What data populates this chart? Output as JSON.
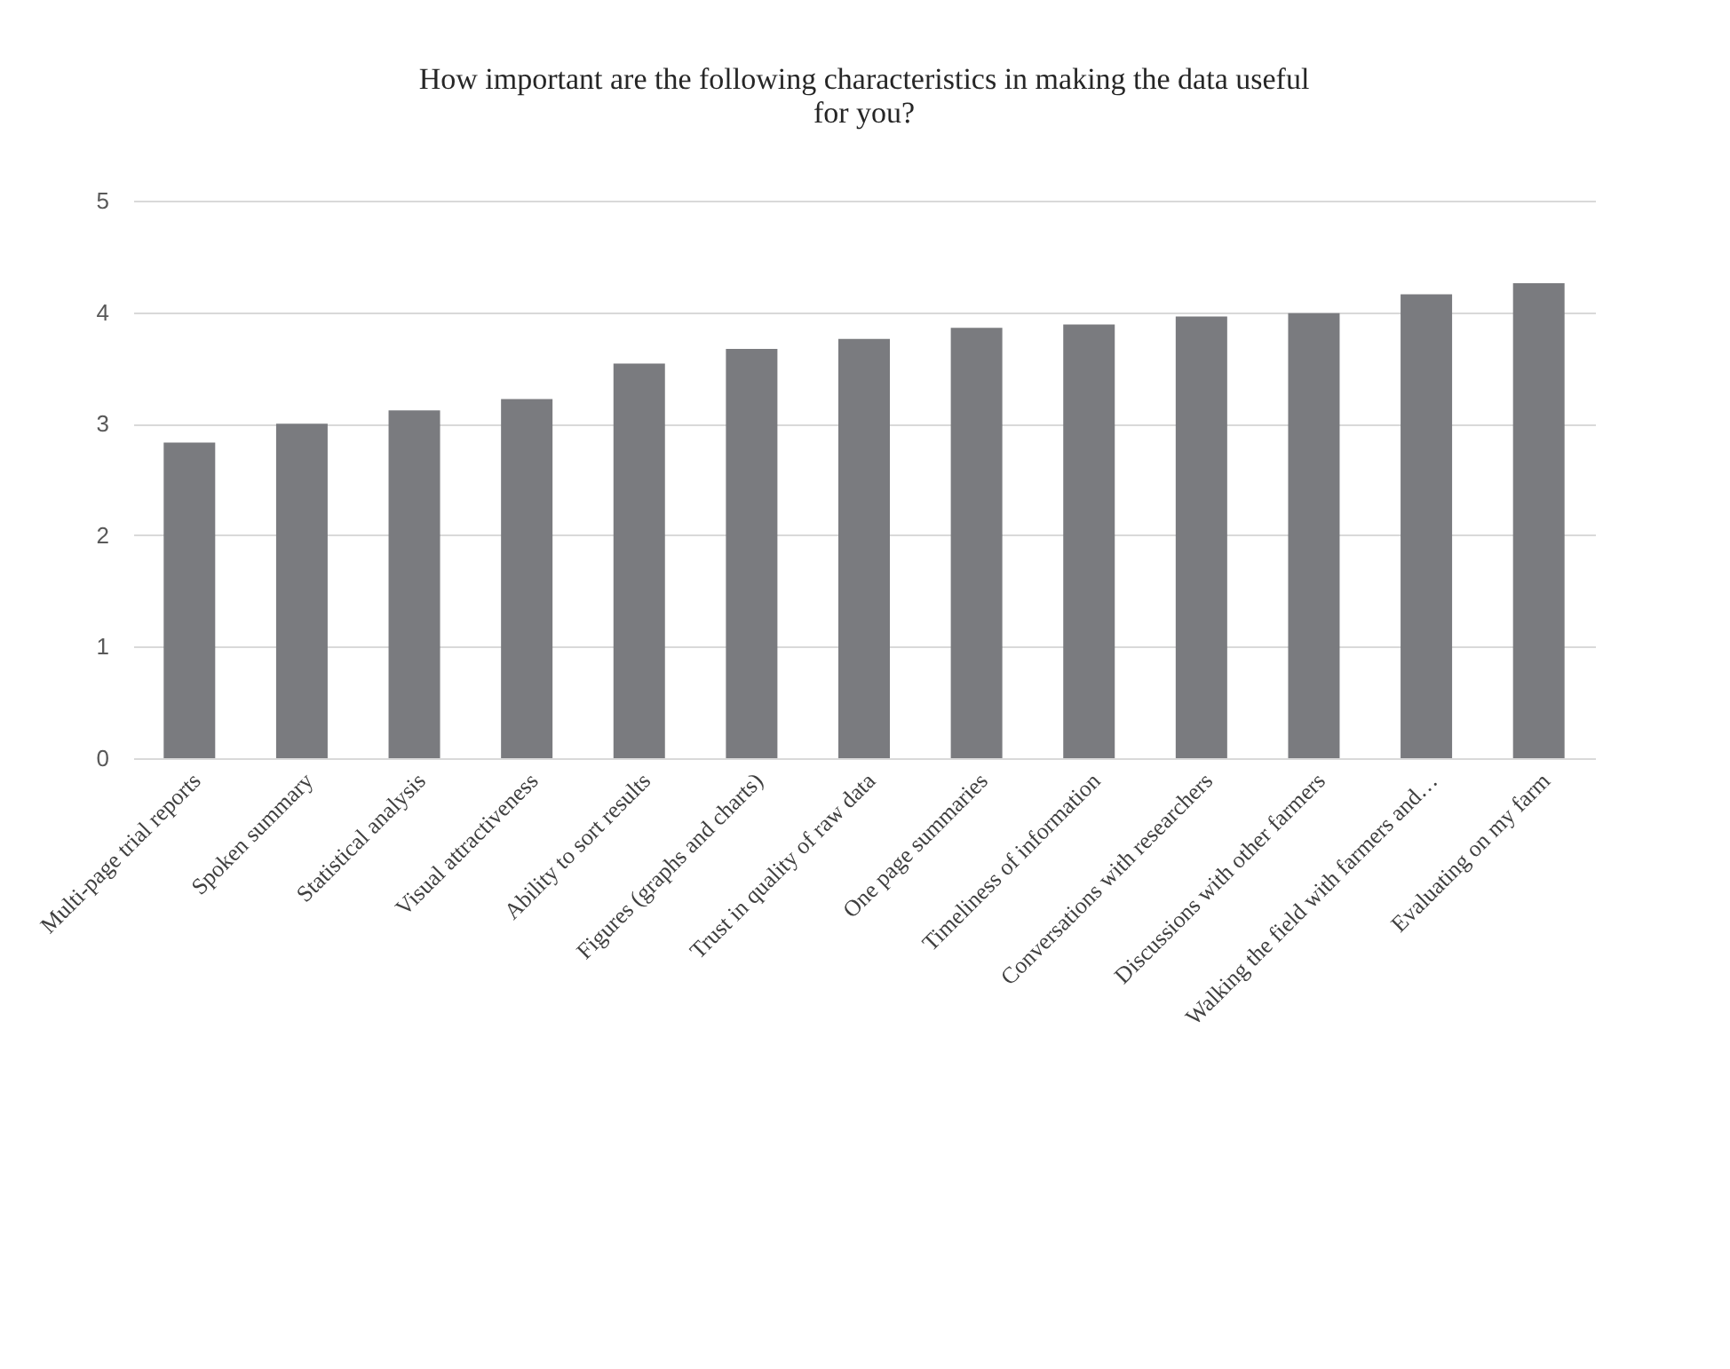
{
  "chart_data": {
    "type": "bar",
    "title": "How important are the following characteristics in making the data useful for you?",
    "categories": [
      "Multi-page trial reports",
      "Spoken summary",
      "Statistical analysis",
      "Visual attractiveness",
      "Ability to sort results",
      "Figures (graphs and charts)",
      "Trust in quality of raw data",
      "One page summaries",
      "Timeliness of information",
      "Conversations with researchers",
      "Discussions with other farmers",
      "Walking the field with farmers and…",
      "Evaluating on my farm"
    ],
    "values": [
      2.83,
      3.0,
      3.12,
      3.22,
      3.54,
      3.67,
      3.76,
      3.86,
      3.89,
      3.96,
      3.99,
      4.16,
      4.26
    ],
    "color": "#7a7b7f",
    "ylim": [
      0,
      5
    ],
    "yticks": [
      0,
      1,
      2,
      3,
      4,
      5
    ],
    "grid": "y"
  }
}
